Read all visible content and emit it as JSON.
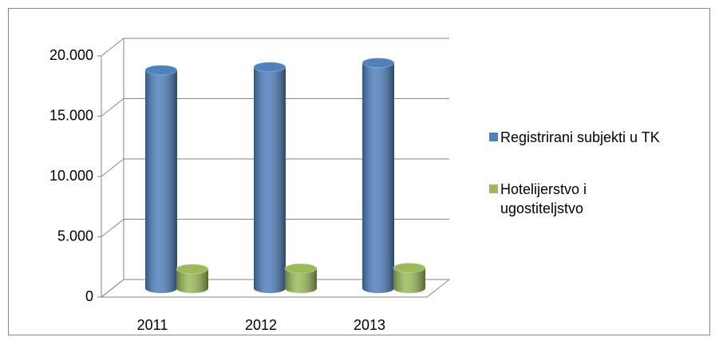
{
  "chart_data": {
    "type": "bar3d",
    "categories": [
      "2011",
      "2012",
      "2013"
    ],
    "series": [
      {
        "name": "Registrirani subjekti u TK",
        "color": "#4f81bd",
        "values": [
          18100,
          18350,
          18700
        ]
      },
      {
        "name": "Hotelijerstvo i ugostiteljstvo",
        "color": "#9bbb59",
        "values": [
          1600,
          1650,
          1700
        ]
      }
    ],
    "ylim": [
      0,
      20000
    ],
    "yticks": [
      0,
      {
        "value": 5000,
        "label": "5.000"
      },
      {
        "value": 10000,
        "label": "10.000"
      },
      {
        "value": 15000,
        "label": "15.000"
      },
      {
        "value": 20000,
        "label": "20.000"
      }
    ],
    "grid": true,
    "legend": "right"
  }
}
